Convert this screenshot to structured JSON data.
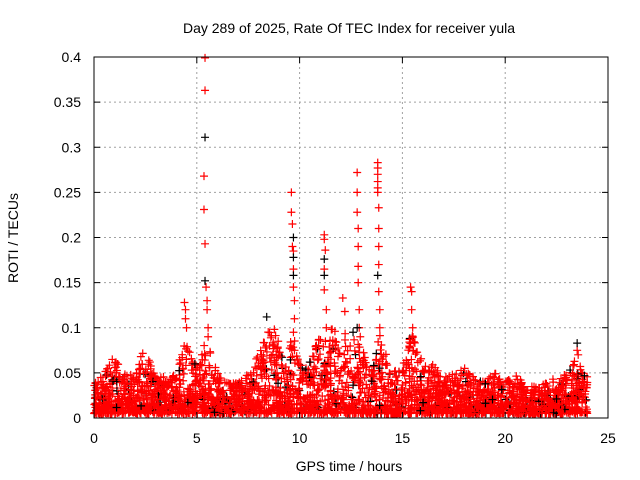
{
  "chart_data": {
    "type": "scatter",
    "title": "Day 289 of 2025, Rate Of TEC Index for receiver yula",
    "xlabel": "GPS time / hours",
    "ylabel": "ROTI / TECUs",
    "xlim": [
      0,
      25
    ],
    "ylim": [
      0,
      0.4
    ],
    "xticks": [
      "0",
      "5",
      "10",
      "15",
      "20",
      "25"
    ],
    "yticks": [
      "0",
      "0.05",
      "0.1",
      "0.15",
      "0.2",
      "0.25",
      "0.3",
      "0.35",
      "0.4"
    ],
    "grid": true,
    "marker": "plus",
    "colors": {
      "primary": "#ff0000",
      "secondary": "#000000",
      "grid": "#a0a0a0"
    },
    "baseline_envelope": [
      [
        0,
        0.04
      ],
      [
        0.5,
        0.05
      ],
      [
        0.9,
        0.07
      ],
      [
        1.5,
        0.05
      ],
      [
        2,
        0.05
      ],
      [
        2.4,
        0.08
      ],
      [
        3,
        0.05
      ],
      [
        3.5,
        0.045
      ],
      [
        4,
        0.05
      ],
      [
        4.4,
        0.09
      ],
      [
        5,
        0.06
      ],
      [
        5.5,
        0.09
      ],
      [
        6,
        0.05
      ],
      [
        6.5,
        0.04
      ],
      [
        7,
        0.04
      ],
      [
        7.5,
        0.05
      ],
      [
        8.3,
        0.095
      ],
      [
        8.8,
        0.1
      ],
      [
        9.3,
        0.06
      ],
      [
        9.7,
        0.1
      ],
      [
        10.2,
        0.05
      ],
      [
        10.6,
        0.07
      ],
      [
        11.1,
        0.1
      ],
      [
        11.6,
        0.1
      ],
      [
        12,
        0.1
      ],
      [
        12.5,
        0.09
      ],
      [
        13,
        0.08
      ],
      [
        13.5,
        0.05
      ],
      [
        13.9,
        0.1
      ],
      [
        14.5,
        0.05
      ],
      [
        15,
        0.06
      ],
      [
        15.5,
        0.1
      ],
      [
        16,
        0.06
      ],
      [
        16.5,
        0.06
      ],
      [
        17,
        0.045
      ],
      [
        17.5,
        0.05
      ],
      [
        18,
        0.06
      ],
      [
        18.5,
        0.045
      ],
      [
        19,
        0.04
      ],
      [
        19.5,
        0.05
      ],
      [
        20,
        0.04
      ],
      [
        20.5,
        0.05
      ],
      [
        21,
        0.035
      ],
      [
        21.5,
        0.035
      ],
      [
        22,
        0.04
      ],
      [
        22.5,
        0.045
      ],
      [
        23,
        0.05
      ],
      [
        23.5,
        0.07
      ],
      [
        24,
        0.05
      ]
    ],
    "series": [
      {
        "name": "red",
        "color": "#ff0000",
        "points": [
          [
            5.4,
            0.399
          ],
          [
            5.4,
            0.363
          ],
          [
            5.35,
            0.268
          ],
          [
            5.35,
            0.231
          ],
          [
            5.4,
            0.193
          ],
          [
            5.45,
            0.145
          ],
          [
            5.5,
            0.13
          ],
          [
            5.5,
            0.12
          ],
          [
            5.55,
            0.1
          ],
          [
            5.55,
            0.09
          ],
          [
            9.6,
            0.25
          ],
          [
            9.6,
            0.228
          ],
          [
            9.65,
            0.215
          ],
          [
            9.65,
            0.19
          ],
          [
            9.7,
            0.185
          ],
          [
            9.7,
            0.165
          ],
          [
            9.7,
            0.145
          ],
          [
            9.75,
            0.13
          ],
          [
            9.75,
            0.11
          ],
          [
            9.7,
            0.095
          ],
          [
            9.75,
            0.075
          ],
          [
            11.2,
            0.203
          ],
          [
            11.2,
            0.198
          ],
          [
            11.25,
            0.186
          ],
          [
            11.2,
            0.165
          ],
          [
            11.2,
            0.142
          ],
          [
            11.3,
            0.12
          ],
          [
            11.3,
            0.1
          ],
          [
            12.1,
            0.133
          ],
          [
            12.2,
            0.118
          ],
          [
            12.8,
            0.272
          ],
          [
            12.8,
            0.25
          ],
          [
            12.8,
            0.228
          ],
          [
            12.85,
            0.21
          ],
          [
            12.85,
            0.19
          ],
          [
            12.85,
            0.168
          ],
          [
            12.85,
            0.15
          ],
          [
            12.9,
            0.12
          ],
          [
            12.9,
            0.1
          ],
          [
            12.95,
            0.09
          ],
          [
            13.8,
            0.283
          ],
          [
            13.8,
            0.277
          ],
          [
            13.8,
            0.27
          ],
          [
            13.8,
            0.262
          ],
          [
            13.8,
            0.255
          ],
          [
            13.8,
            0.25
          ],
          [
            13.85,
            0.233
          ],
          [
            13.85,
            0.21
          ],
          [
            13.85,
            0.19
          ],
          [
            13.85,
            0.17
          ],
          [
            13.85,
            0.14
          ],
          [
            13.9,
            0.12
          ],
          [
            13.9,
            0.1
          ],
          [
            15.4,
            0.145
          ],
          [
            15.45,
            0.14
          ],
          [
            15.45,
            0.12
          ],
          [
            15.5,
            0.1
          ],
          [
            4.4,
            0.128
          ],
          [
            4.45,
            0.12
          ],
          [
            4.45,
            0.11
          ],
          [
            4.5,
            0.1
          ],
          [
            23.5,
            0.075
          ],
          [
            23.55,
            0.07
          ]
        ]
      },
      {
        "name": "black",
        "color": "#000000",
        "points": [
          [
            5.4,
            0.311
          ],
          [
            5.4,
            0.152
          ],
          [
            9.7,
            0.2
          ],
          [
            9.7,
            0.178
          ],
          [
            9.7,
            0.158
          ],
          [
            11.2,
            0.176
          ],
          [
            11.2,
            0.158
          ],
          [
            13.8,
            0.158
          ],
          [
            8.4,
            0.112
          ],
          [
            23.5,
            0.083
          ],
          [
            12.8,
            0.1
          ],
          [
            12.6,
            0.095
          ]
        ]
      }
    ]
  }
}
